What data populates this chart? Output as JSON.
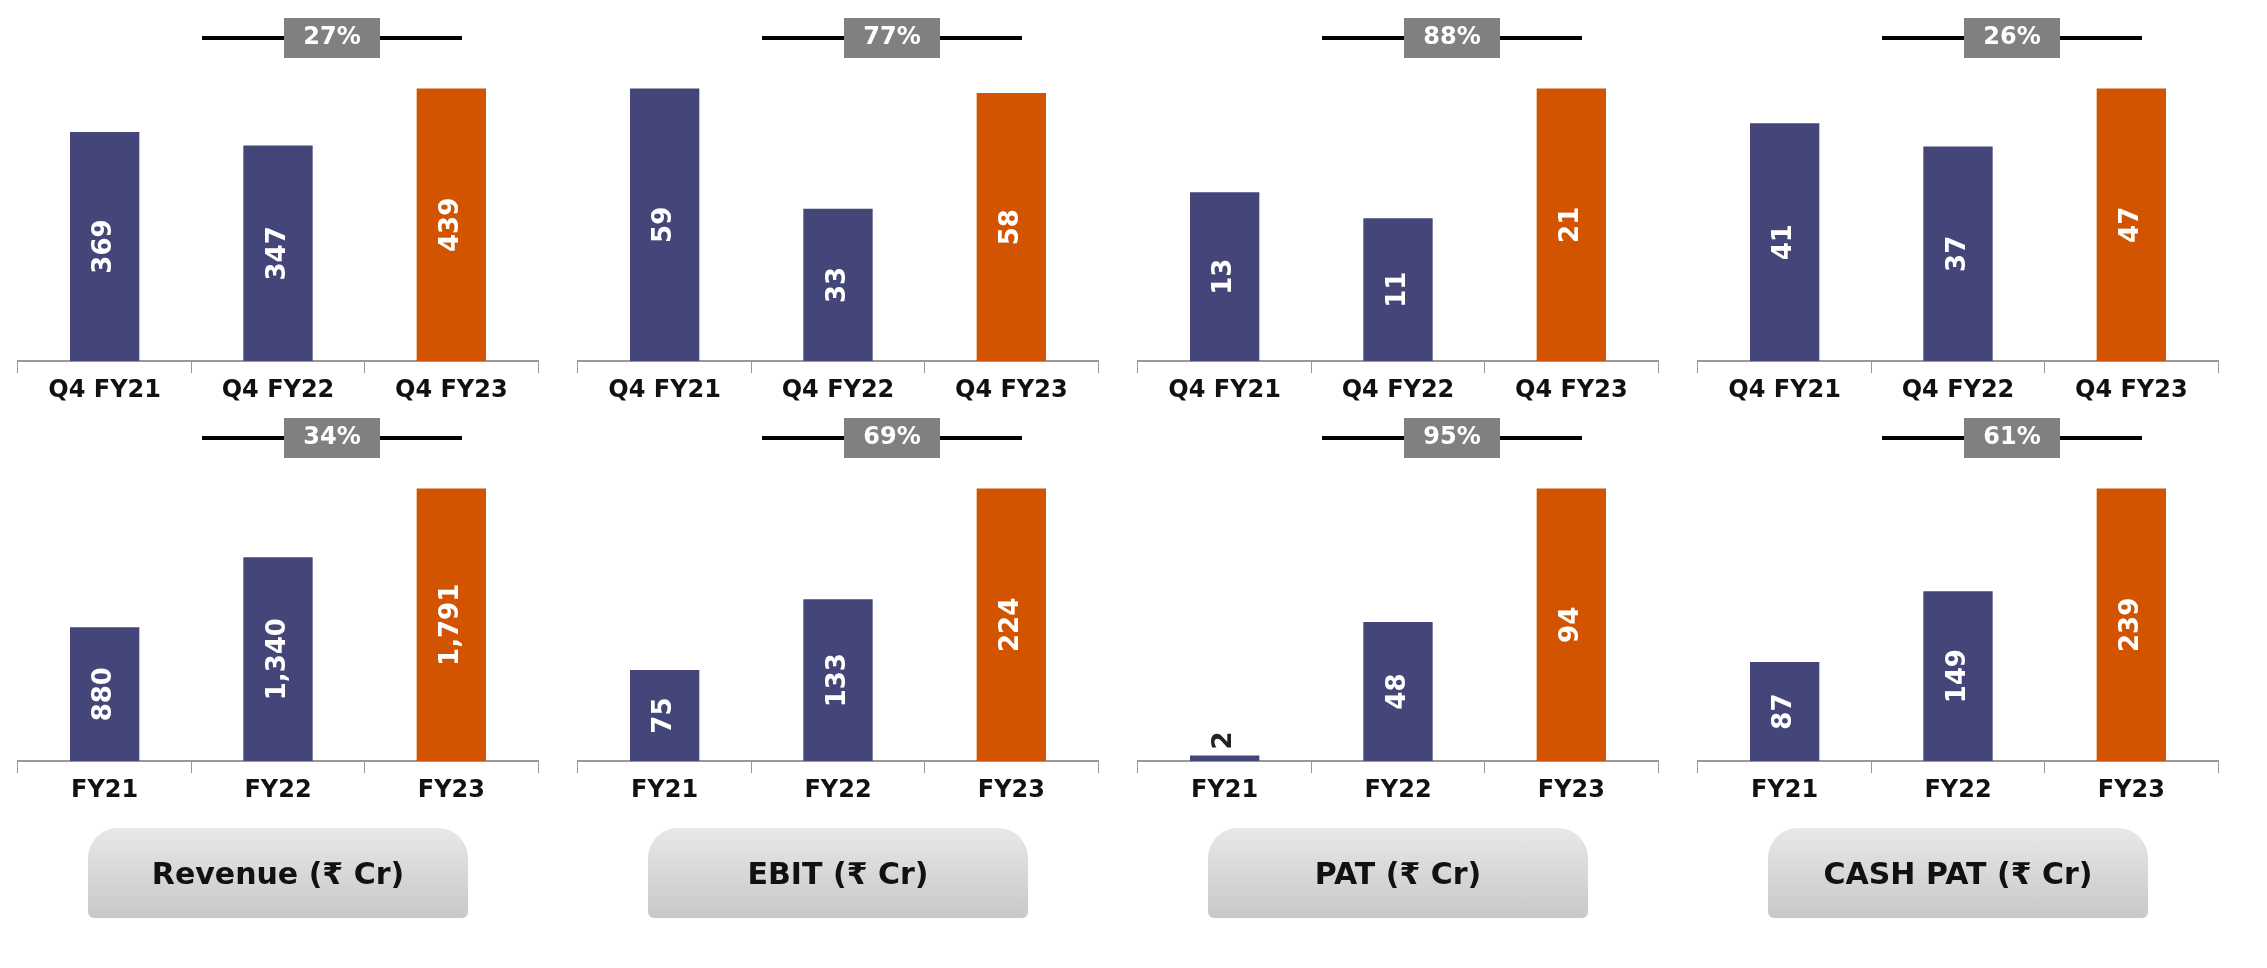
{
  "chart_data": [
    {
      "type": "bar",
      "categories": [
        "Q4 FY21",
        "Q4 FY22",
        "Q4 FY23"
      ],
      "values": [
        369,
        347,
        439
      ],
      "colors": [
        "#44467a",
        "#44467a",
        "#d35400"
      ],
      "data_labels": true,
      "annotations": [
        "27%"
      ]
    },
    {
      "type": "bar",
      "categories": [
        "Q4 FY21",
        "Q4 FY22",
        "Q4 FY23"
      ],
      "values": [
        59,
        33,
        58
      ],
      "colors": [
        "#44467a",
        "#44467a",
        "#d35400"
      ],
      "data_labels": true,
      "annotations": [
        "77%"
      ]
    },
    {
      "type": "bar",
      "categories": [
        "Q4 FY21",
        "Q4 FY22",
        "Q4 FY23"
      ],
      "values": [
        13,
        11,
        21
      ],
      "colors": [
        "#44467a",
        "#44467a",
        "#d35400"
      ],
      "data_labels": true,
      "annotations": [
        "88%"
      ]
    },
    {
      "type": "bar",
      "categories": [
        "Q4 FY21",
        "Q4 FY22",
        "Q4 FY23"
      ],
      "values": [
        41,
        37,
        47
      ],
      "colors": [
        "#44467a",
        "#44467a",
        "#d35400"
      ],
      "data_labels": true,
      "annotations": [
        "26%"
      ]
    },
    {
      "type": "bar",
      "title": "Revenue (₹ Cr)",
      "categories": [
        "FY21",
        "FY22",
        "FY23"
      ],
      "values": [
        880,
        1340,
        1791
      ],
      "value_labels": [
        "880",
        "1,340",
        "1,791"
      ],
      "colors": [
        "#44467a",
        "#44467a",
        "#d35400"
      ],
      "annotations": [
        "34%"
      ]
    },
    {
      "type": "bar",
      "title": "EBIT (₹ Cr)",
      "categories": [
        "FY21",
        "FY22",
        "FY23"
      ],
      "values": [
        75,
        133,
        224
      ],
      "colors": [
        "#44467a",
        "#44467a",
        "#d35400"
      ],
      "data_labels": true,
      "annotations": [
        "69%"
      ]
    },
    {
      "type": "bar",
      "title": "PAT (₹ Cr)",
      "categories": [
        "FY21",
        "FY22",
        "FY23"
      ],
      "values": [
        2,
        48,
        94
      ],
      "colors": [
        "#44467a",
        "#44467a",
        "#d35400"
      ],
      "data_labels": true,
      "annotations": [
        "95%"
      ]
    },
    {
      "type": "bar",
      "title": "CASH PAT (₹ Cr)",
      "categories": [
        "FY21",
        "FY22",
        "FY23"
      ],
      "values": [
        87,
        149,
        239
      ],
      "colors": [
        "#44467a",
        "#44467a",
        "#d35400"
      ],
      "data_labels": true,
      "annotations": [
        "61%"
      ]
    }
  ]
}
